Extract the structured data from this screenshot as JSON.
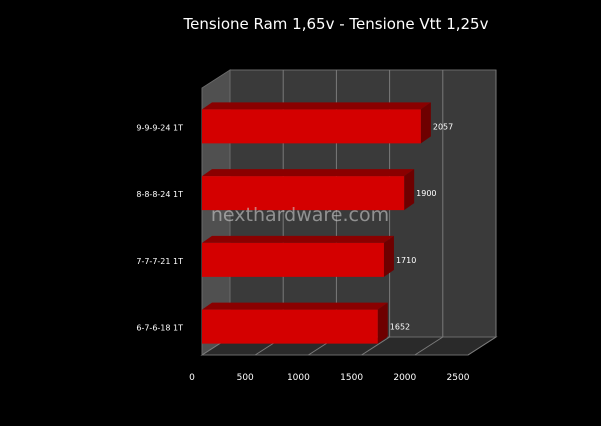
{
  "chart_data": {
    "type": "bar",
    "orientation": "horizontal",
    "title": "Tensione Ram 1,65v - Tensione Vtt 1,25v",
    "categories": [
      "9-9-9-24 1T",
      "8-8-8-24 1T",
      "7-7-7-21 1T",
      "6-7-6-18 1T"
    ],
    "values": [
      2057,
      1900,
      1710,
      1652
    ],
    "xticks": [
      "0",
      "500",
      "1000",
      "1500",
      "2000",
      "2500"
    ],
    "xlim": [
      0,
      2500
    ],
    "grid": true,
    "legend": "none",
    "bar_color": "#d40000",
    "wall_color": "#3a3a3a"
  },
  "watermark": "nexthardware.com"
}
